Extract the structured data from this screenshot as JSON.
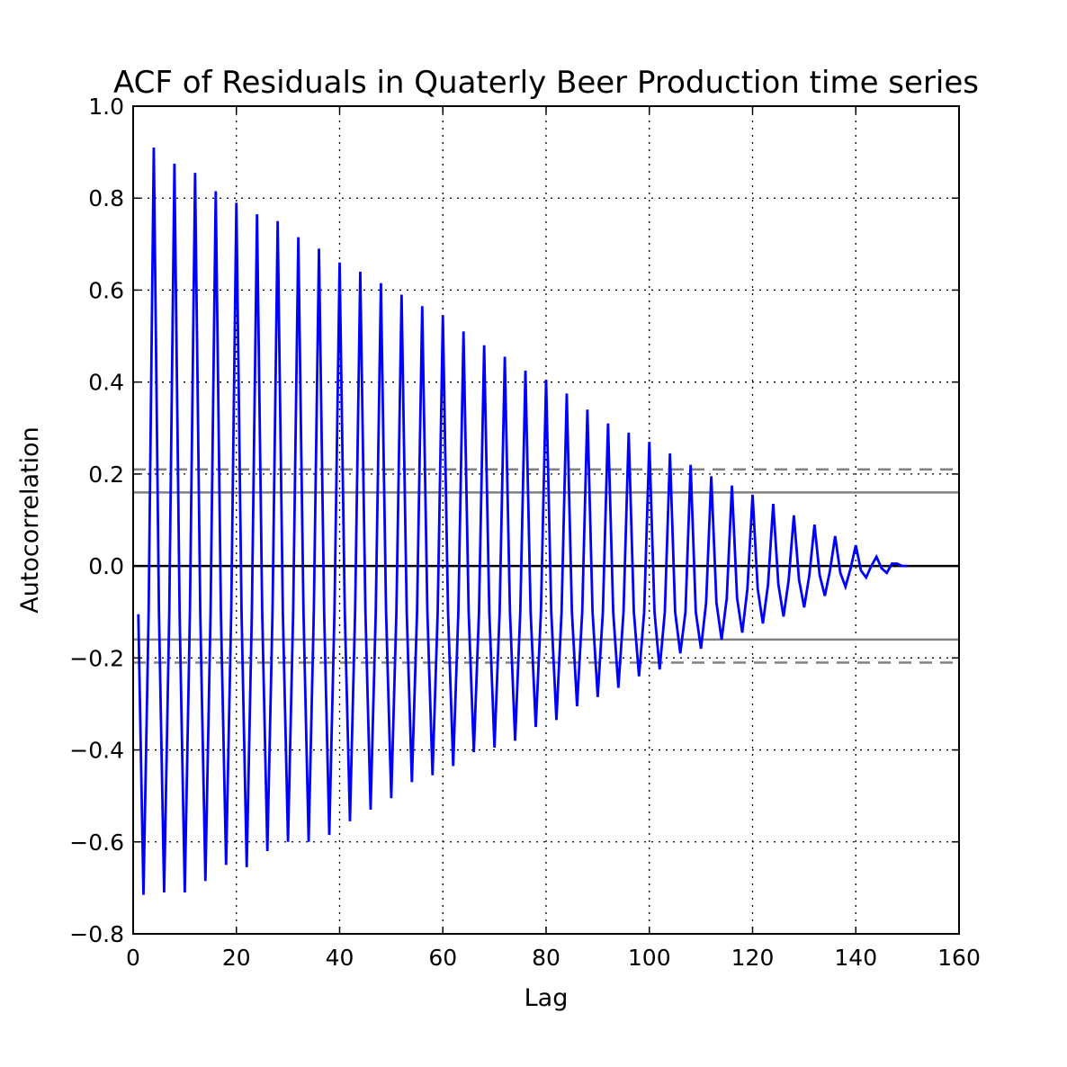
{
  "chart_data": {
    "type": "line",
    "title": "ACF of Residuals in Quaterly Beer Production time series",
    "xlabel": "Lag",
    "ylabel": "Autocorrelation",
    "xlim": [
      0,
      160
    ],
    "ylim": [
      -0.8,
      1.0
    ],
    "xticks": [
      0,
      20,
      40,
      60,
      80,
      100,
      120,
      140,
      160
    ],
    "yticks": [
      -0.8,
      -0.6,
      -0.4,
      -0.2,
      0.0,
      0.2,
      0.4,
      0.6,
      0.8,
      1.0
    ],
    "xtick_labels": [
      "0",
      "20",
      "40",
      "60",
      "80",
      "100",
      "120",
      "140",
      "160"
    ],
    "ytick_labels": [
      "−0.8",
      "−0.6",
      "−0.4",
      "−0.2",
      "0.0",
      "0.2",
      "0.4",
      "0.6",
      "0.8",
      "1.0"
    ],
    "grid": true,
    "colors": {
      "series": "#0000ff",
      "zero_line": "#000000",
      "conf_line": "#808080"
    },
    "reference_lines": {
      "zero": 0.0,
      "conf_95": [
        0.16,
        -0.16
      ],
      "conf_99": [
        0.21,
        -0.21
      ]
    },
    "series": [
      {
        "x": [
          1,
          2,
          3,
          4,
          5,
          6,
          7,
          8,
          9,
          10,
          11,
          12,
          13,
          14,
          15,
          16,
          17,
          18,
          19,
          20,
          21,
          22,
          23,
          24,
          25,
          26,
          27,
          28,
          29,
          30,
          31,
          32,
          33,
          34,
          35,
          36,
          37,
          38,
          39,
          40,
          41,
          42,
          43,
          44,
          45,
          46,
          47,
          48,
          49,
          50,
          51,
          52,
          53,
          54,
          55,
          56,
          57,
          58,
          59,
          60,
          61,
          62,
          63,
          64,
          65,
          66,
          67,
          68,
          69,
          70,
          71,
          72,
          73,
          74,
          75,
          76,
          77,
          78,
          79,
          80,
          81,
          82,
          83,
          84,
          85,
          86,
          87,
          88,
          89,
          90,
          91,
          92,
          93,
          94,
          95,
          96,
          97,
          98,
          99,
          100,
          101,
          102,
          103,
          104,
          105,
          106,
          107,
          108,
          109,
          110,
          111,
          112,
          113,
          114,
          115,
          116,
          117,
          118,
          119,
          120,
          121,
          122,
          123,
          124,
          125,
          126,
          127,
          128,
          129,
          130,
          131,
          132,
          133,
          134,
          135,
          136,
          137,
          138,
          139,
          140,
          141,
          142,
          143,
          144,
          145,
          146,
          147,
          148,
          149,
          150
        ],
        "values": [
          -0.105,
          -0.715,
          -0.1,
          0.91,
          -0.1,
          -0.71,
          -0.1,
          0.875,
          -0.1,
          -0.71,
          -0.1,
          0.855,
          -0.1,
          -0.685,
          -0.1,
          0.815,
          -0.1,
          -0.65,
          -0.1,
          0.79,
          -0.1,
          -0.655,
          -0.1,
          0.765,
          -0.1,
          -0.62,
          -0.1,
          0.75,
          -0.1,
          -0.6,
          -0.1,
          0.715,
          -0.1,
          -0.6,
          -0.1,
          0.69,
          -0.1,
          -0.585,
          -0.1,
          0.66,
          -0.1,
          -0.555,
          -0.1,
          0.64,
          -0.1,
          -0.53,
          -0.1,
          0.615,
          -0.1,
          -0.505,
          -0.1,
          0.59,
          -0.1,
          -0.47,
          -0.1,
          0.565,
          -0.1,
          -0.455,
          -0.1,
          0.545,
          -0.1,
          -0.435,
          -0.1,
          0.51,
          -0.1,
          -0.405,
          -0.1,
          0.48,
          -0.1,
          -0.395,
          -0.1,
          0.455,
          -0.1,
          -0.38,
          -0.1,
          0.425,
          -0.1,
          -0.35,
          -0.1,
          0.405,
          -0.1,
          -0.335,
          -0.1,
          0.375,
          -0.1,
          -0.305,
          -0.1,
          0.34,
          -0.1,
          -0.285,
          -0.1,
          0.31,
          -0.1,
          -0.265,
          -0.1,
          0.29,
          -0.1,
          -0.24,
          -0.1,
          0.27,
          -0.1,
          -0.225,
          -0.1,
          0.245,
          -0.1,
          -0.19,
          -0.1,
          0.22,
          -0.1,
          -0.18,
          -0.08,
          0.195,
          -0.08,
          -0.16,
          -0.07,
          0.175,
          -0.07,
          -0.145,
          -0.05,
          0.155,
          -0.05,
          -0.125,
          -0.04,
          0.135,
          -0.04,
          -0.11,
          -0.03,
          0.11,
          -0.03,
          -0.09,
          -0.02,
          0.09,
          -0.02,
          -0.065,
          -0.01,
          0.065,
          -0.015,
          -0.045,
          -0.005,
          0.045,
          -0.01,
          -0.025,
          0.0,
          0.02,
          -0.005,
          -0.015,
          0.005,
          0.005,
          0.0,
          0.0
        ]
      }
    ]
  }
}
